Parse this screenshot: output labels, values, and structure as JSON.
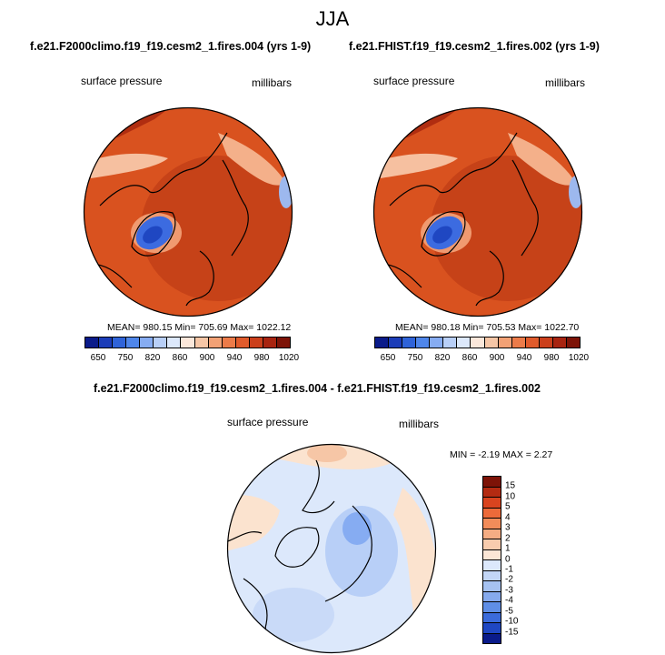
{
  "figure": {
    "title": "JJA",
    "panel_left": {
      "title": "f.e21.F2000climo.f19_f19.cesm2_1.fires.004 (yrs 1-9)",
      "left_label": "surface pressure",
      "right_label": "millibars",
      "stats": "MEAN= 980.15  Min= 705.69  Max= 1022.12"
    },
    "panel_right": {
      "title": "f.e21.FHIST.f19_f19.cesm2_1.fires.002 (yrs 1-9)",
      "left_label": "surface pressure",
      "right_label": "millibars",
      "stats": "MEAN= 980.18  Min= 705.53  Max= 1022.70"
    },
    "panel_diff": {
      "title": "f.e21.F2000climo.f19_f19.cesm2_1.fires.004 - f.e21.FHIST.f19_f19.cesm2_1.fires.002",
      "left_label": "surface pressure",
      "right_label": "millibars",
      "stats": "MIN =  -2.19 MAX =   2.27"
    }
  },
  "chart_data": [
    {
      "type": "heatmap",
      "projection": "north polar stereographic",
      "title": "f.e21.F2000climo.f19_f19.cesm2_1.fires.004 (yrs 1-9)",
      "variable": "surface pressure",
      "units": "millibars",
      "mean": 980.15,
      "min": 705.69,
      "max": 1022.12,
      "colorbar_ticks": [
        650,
        750,
        820,
        860,
        900,
        940,
        980,
        1020
      ],
      "colorbar_colors": [
        "#0a1b8a",
        "#1c3db8",
        "#2f63d8",
        "#4f86ea",
        "#86acf2",
        "#b8cff7",
        "#dce8fb",
        "#fbe7da",
        "#f6c6a6",
        "#f2a175",
        "#ec7b49",
        "#e05b2c",
        "#cb3f1b",
        "#a82410",
        "#7d1307"
      ]
    },
    {
      "type": "heatmap",
      "projection": "north polar stereographic",
      "title": "f.e21.FHIST.f19_f19.cesm2_1.fires.002 (yrs 1-9)",
      "variable": "surface pressure",
      "units": "millibars",
      "mean": 980.18,
      "min": 705.53,
      "max": 1022.7,
      "colorbar_ticks": [
        650,
        750,
        820,
        860,
        900,
        940,
        980,
        1020
      ],
      "colorbar_colors": [
        "#0a1b8a",
        "#1c3db8",
        "#2f63d8",
        "#4f86ea",
        "#86acf2",
        "#b8cff7",
        "#dce8fb",
        "#fbe7da",
        "#f6c6a6",
        "#f2a175",
        "#ec7b49",
        "#e05b2c",
        "#cb3f1b",
        "#a82410",
        "#7d1307"
      ]
    },
    {
      "type": "heatmap",
      "projection": "north polar stereographic",
      "title": "f.e21.F2000climo.f19_f19.cesm2_1.fires.004 - f.e21.FHIST.f19_f19.cesm2_1.fires.002",
      "variable": "surface pressure",
      "units": "millibars",
      "min": -2.19,
      "max": 2.27,
      "colorbar_ticks": [
        15,
        10,
        5,
        4,
        3,
        2,
        1,
        0,
        -1,
        -2,
        -3,
        -4,
        -5,
        -10,
        -15
      ],
      "colorbar_colors": [
        "#7d1307",
        "#b42b12",
        "#d9441f",
        "#ec6a3a",
        "#f28c5a",
        "#f5ad84",
        "#f8ccae",
        "#fbe6d6",
        "#dce8fb",
        "#c3d6f6",
        "#a6c2f1",
        "#86aaed",
        "#5f8ee6",
        "#3b6bdb",
        "#1f47c2",
        "#0a1b8a"
      ]
    }
  ]
}
